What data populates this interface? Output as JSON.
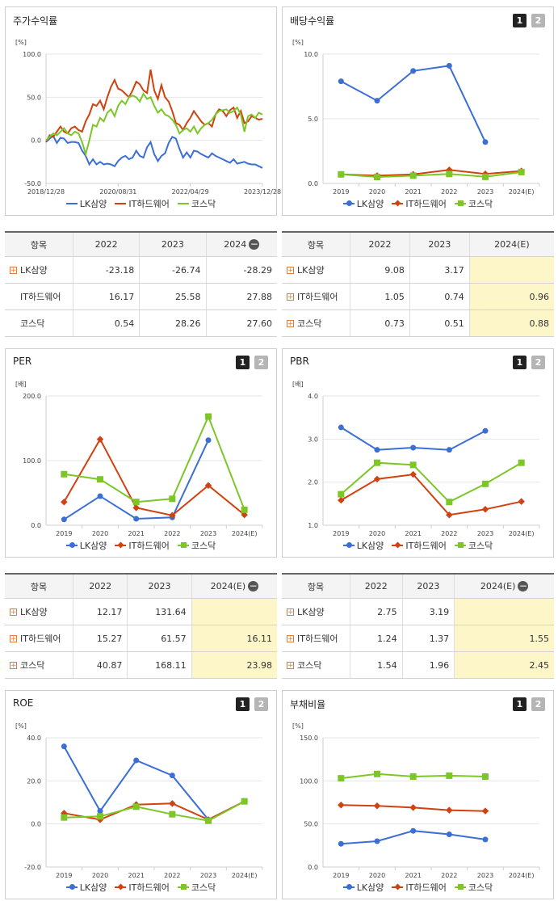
{
  "colors": {
    "lk": "#3b6fd6",
    "it": "#d0420f",
    "kq": "#7cc628"
  },
  "legend": {
    "lk": "LK삼양",
    "it": "IT하드웨어",
    "kq": "코스닥"
  },
  "tabs": {
    "one": "1",
    "two": "2"
  },
  "panels": {
    "stock": {
      "title": "주가수익률"
    },
    "dividend": {
      "title": "배당수익률"
    },
    "per": {
      "title": "PER"
    },
    "pbr": {
      "title": "PBR"
    },
    "roe": {
      "title": "ROE"
    },
    "debt": {
      "title": "부채비율"
    }
  },
  "tables": {
    "stock": {
      "headers": [
        "항목",
        "2022",
        "2023",
        "2024"
      ],
      "rows": [
        {
          "name": "LK삼양",
          "vals": [
            "-23.18",
            "-26.74",
            "-28.29"
          ]
        },
        {
          "name": "IT하드웨어",
          "vals": [
            "16.17",
            "25.58",
            "27.88"
          ]
        },
        {
          "name": "코스닥",
          "vals": [
            "0.54",
            "28.26",
            "27.60"
          ]
        }
      ]
    },
    "dividend": {
      "headers": [
        "항목",
        "2022",
        "2023",
        "2024(E)"
      ],
      "rows": [
        {
          "name": "LK삼양",
          "vals": [
            "9.08",
            "3.17",
            ""
          ]
        },
        {
          "name": "IT하드웨어",
          "vals": [
            "1.05",
            "0.74",
            "0.96"
          ]
        },
        {
          "name": "코스닥",
          "vals": [
            "0.73",
            "0.51",
            "0.88"
          ]
        }
      ]
    },
    "per": {
      "headers": [
        "항목",
        "2022",
        "2023",
        "2024(E)"
      ],
      "rows": [
        {
          "name": "LK삼양",
          "vals": [
            "12.17",
            "131.64",
            ""
          ]
        },
        {
          "name": "IT하드웨어",
          "vals": [
            "15.27",
            "61.57",
            "16.11"
          ]
        },
        {
          "name": "코스닥",
          "vals": [
            "40.87",
            "168.11",
            "23.98"
          ]
        }
      ]
    },
    "pbr": {
      "headers": [
        "항목",
        "2022",
        "2023",
        "2024(E)"
      ],
      "rows": [
        {
          "name": "LK삼양",
          "vals": [
            "2.75",
            "3.19",
            ""
          ]
        },
        {
          "name": "IT하드웨어",
          "vals": [
            "1.24",
            "1.37",
            "1.55"
          ]
        },
        {
          "name": "코스닥",
          "vals": [
            "1.54",
            "1.96",
            "2.45"
          ]
        }
      ]
    }
  },
  "chart_data": [
    {
      "id": "stock",
      "type": "line",
      "unit": "[%]",
      "ylim": [
        -50,
        100
      ],
      "yticks": [
        "100.0",
        "50.0",
        "0.0",
        "-50.0"
      ],
      "xlabels": [
        "2018/12/28",
        "2020/08/31",
        "2022/04/29",
        "2023/12/28"
      ],
      "series": [
        {
          "name": "LK삼양",
          "values": [
            -2,
            2,
            5,
            -3,
            3,
            2,
            -3,
            -2,
            -2,
            -3,
            -12,
            -18,
            -28,
            -22,
            -28,
            -25,
            -28,
            -27,
            -28,
            -30,
            -24,
            -20,
            -18,
            -22,
            -20,
            -12,
            -18,
            -20,
            -8,
            -2,
            -16,
            -24,
            -18,
            -15,
            -3,
            4,
            2,
            -10,
            -20,
            -14,
            -20,
            -12,
            -13,
            -16,
            -18,
            -20,
            -15,
            -18,
            -20,
            -22,
            -24,
            -26,
            -22,
            -27,
            -26,
            -25,
            -27,
            -28,
            -28,
            -30,
            -32
          ]
        },
        {
          "name": "IT하드웨어",
          "values": [
            -2,
            6,
            4,
            10,
            16,
            10,
            8,
            14,
            16,
            12,
            10,
            22,
            30,
            42,
            40,
            46,
            36,
            50,
            62,
            70,
            60,
            58,
            54,
            50,
            58,
            68,
            65,
            58,
            55,
            82,
            58,
            48,
            64,
            50,
            45,
            34,
            20,
            18,
            12,
            20,
            26,
            34,
            28,
            22,
            18,
            20,
            16,
            30,
            36,
            34,
            28,
            35,
            38,
            26,
            34,
            20,
            22,
            28,
            26,
            24,
            25
          ]
        },
        {
          "name": "코스닥",
          "values": [
            0,
            4,
            8,
            6,
            10,
            14,
            8,
            6,
            10,
            8,
            -2,
            -16,
            0,
            18,
            16,
            26,
            22,
            32,
            36,
            28,
            40,
            46,
            42,
            50,
            52,
            50,
            45,
            54,
            48,
            50,
            40,
            32,
            36,
            30,
            28,
            24,
            18,
            8,
            12,
            14,
            10,
            16,
            8,
            14,
            18,
            20,
            24,
            30,
            34,
            35,
            36,
            32,
            34,
            38,
            30,
            10,
            28,
            30,
            26,
            32,
            30
          ]
        }
      ]
    },
    {
      "id": "dividend",
      "type": "line",
      "unit": "[%]",
      "ylim": [
        0,
        10
      ],
      "yticks": [
        "10.0",
        "5.0",
        "0.0"
      ],
      "categories": [
        "2019",
        "2020",
        "2021",
        "2022",
        "2023",
        "2024(E)"
      ],
      "series": [
        {
          "name": "LK삼양",
          "values": [
            7.9,
            6.4,
            8.7,
            9.1,
            3.2,
            null
          ]
        },
        {
          "name": "IT하드웨어",
          "values": [
            0.7,
            0.6,
            0.7,
            1.05,
            0.74,
            0.96
          ]
        },
        {
          "name": "코스닥",
          "values": [
            0.7,
            0.5,
            0.6,
            0.73,
            0.51,
            0.88
          ]
        }
      ]
    },
    {
      "id": "per",
      "type": "line",
      "unit": "[배]",
      "ylim": [
        0,
        200
      ],
      "yticks": [
        "200.0",
        "100.0",
        "0.0"
      ],
      "categories": [
        "2019",
        "2020",
        "2021",
        "2022",
        "2023",
        "2024(E)"
      ],
      "series": [
        {
          "name": "LK삼양",
          "values": [
            9,
            45,
            10,
            12.17,
            131.64,
            null
          ]
        },
        {
          "name": "IT하드웨어",
          "values": [
            36,
            133,
            27,
            15.27,
            61.57,
            16.11
          ]
        },
        {
          "name": "코스닥",
          "values": [
            79,
            71,
            36,
            40.87,
            168.11,
            23.98
          ]
        }
      ]
    },
    {
      "id": "pbr",
      "type": "line",
      "unit": "[배]",
      "ylim": [
        1,
        4
      ],
      "yticks": [
        "4.0",
        "3.0",
        "2.0",
        "1.0"
      ],
      "categories": [
        "2019",
        "2020",
        "2021",
        "2022",
        "2023",
        "2024(E)"
      ],
      "series": [
        {
          "name": "LK삼양",
          "values": [
            3.27,
            2.75,
            2.8,
            2.75,
            3.19,
            null
          ]
        },
        {
          "name": "IT하드웨어",
          "values": [
            1.58,
            2.07,
            2.18,
            1.24,
            1.37,
            1.55
          ]
        },
        {
          "name": "코스닥",
          "values": [
            1.72,
            2.45,
            2.4,
            1.54,
            1.96,
            2.45
          ]
        }
      ]
    },
    {
      "id": "roe",
      "type": "line",
      "unit": "[%]",
      "ylim": [
        -20,
        40
      ],
      "yticks": [
        "40.0",
        "20.0",
        "0.0",
        "-20.0"
      ],
      "categories": [
        "2019",
        "2020",
        "2021",
        "2022",
        "2023",
        "2024(E)"
      ],
      "series": [
        {
          "name": "LK삼양",
          "values": [
            36,
            6,
            29.5,
            22.5,
            2,
            null
          ]
        },
        {
          "name": "IT하드웨어",
          "values": [
            5,
            2,
            9,
            9.5,
            2,
            10.5
          ]
        },
        {
          "name": "코스닥",
          "values": [
            3,
            3.5,
            8,
            4.5,
            1.5,
            10.5
          ]
        }
      ]
    },
    {
      "id": "debt",
      "type": "line",
      "unit": "[%]",
      "ylim": [
        0,
        150
      ],
      "yticks": [
        "150.0",
        "100.0",
        "50.0",
        "0.0"
      ],
      "categories": [
        "2019",
        "2020",
        "2021",
        "2022",
        "2023",
        "2024(E)"
      ],
      "series": [
        {
          "name": "LK삼양",
          "values": [
            27,
            30,
            42,
            38,
            32,
            null
          ]
        },
        {
          "name": "IT하드웨어",
          "values": [
            72,
            71,
            69,
            66,
            65,
            null
          ]
        },
        {
          "name": "코스닥",
          "values": [
            103,
            108,
            105,
            106,
            105,
            null
          ]
        }
      ]
    }
  ]
}
